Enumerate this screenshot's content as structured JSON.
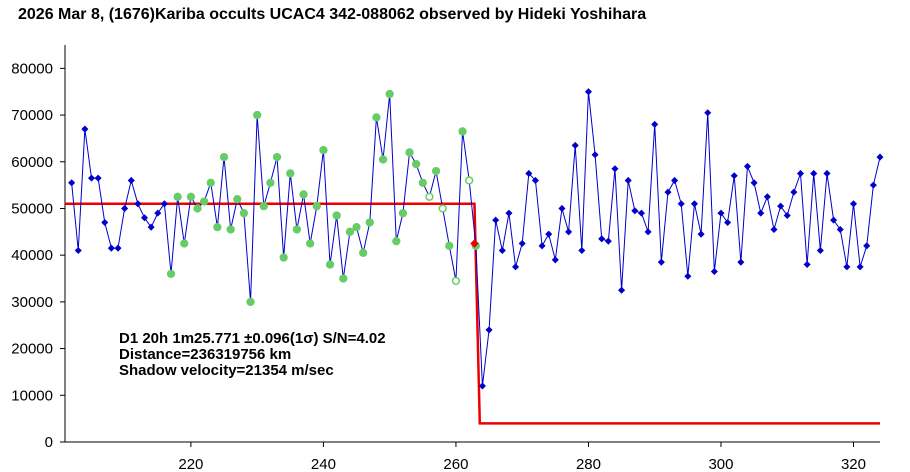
{
  "chart_data": {
    "type": "line",
    "title": "2026 Mar 8, (1676)Kariba occults UCAC4 342-088062 observed by Hideki Yoshihara",
    "xlabel": "",
    "ylabel": "",
    "xlim": [
      201,
      324
    ],
    "ylim": [
      0,
      85000
    ],
    "xticks": [
      220,
      240,
      260,
      280,
      300,
      320
    ],
    "yticks": [
      0,
      10000,
      20000,
      30000,
      40000,
      50000,
      60000,
      70000,
      80000
    ],
    "grid": false,
    "annotations": [
      "D1 20h 1m25.771 ±0.096(1σ) S/N=4.02",
      "Distance=236319756 km",
      "Shadow velocity=21354 m/sec"
    ],
    "series": [
      {
        "kind": "observed",
        "color": "#0000cc",
        "x0": 202,
        "y": [
          55500,
          41000,
          67000,
          56500,
          56500,
          47000,
          41500,
          41500,
          50000,
          56000,
          51000,
          48000,
          46000,
          49000,
          51000,
          36000,
          52500,
          42500,
          52500,
          50000,
          51500,
          55500,
          46000,
          61000,
          45500,
          52000,
          49000,
          30000,
          70000,
          50500,
          55500,
          61000,
          39500,
          57500,
          45500,
          53000,
          42500,
          50500,
          62500,
          38000,
          48500,
          35000,
          45000,
          46000,
          40500,
          47000,
          69500,
          60500,
          74500,
          43000,
          49000,
          62000,
          59500,
          55500,
          52500,
          58000,
          50000,
          42000,
          34500,
          66500,
          56000,
          42000,
          12000,
          24000,
          47500,
          41000,
          49000,
          37500,
          42500,
          57500,
          56000,
          42000,
          44500,
          39000,
          50000,
          45000,
          63500,
          41000,
          75000,
          61500,
          43500,
          43000,
          58500,
          32500,
          56000,
          49500,
          49000,
          45000,
          68000,
          38500,
          53500,
          56000,
          51000,
          35500,
          51000,
          44500,
          70500,
          36500,
          49000,
          47000,
          57000,
          38500,
          59000,
          55500,
          49000,
          52500,
          45500,
          50500,
          48500,
          53500,
          57500,
          38000,
          57500,
          41000,
          57500,
          47500,
          45500,
          37500,
          51000,
          37500,
          42000,
          55000,
          61000
        ]
      },
      {
        "kind": "fitted",
        "color": "#ee0000",
        "x": [
          201,
          262.8,
          263.6,
          324
        ],
        "y": [
          51000,
          51000,
          4000,
          4000
        ]
      }
    ],
    "event_marker": {
      "x": 262.8,
      "y": 42500,
      "color": "#ee0000"
    },
    "highlight_color": "#66cc66",
    "highlight_range_x": [
      217,
      263
    ],
    "hollow_x": [
      256,
      258,
      260,
      262,
      264
    ]
  }
}
